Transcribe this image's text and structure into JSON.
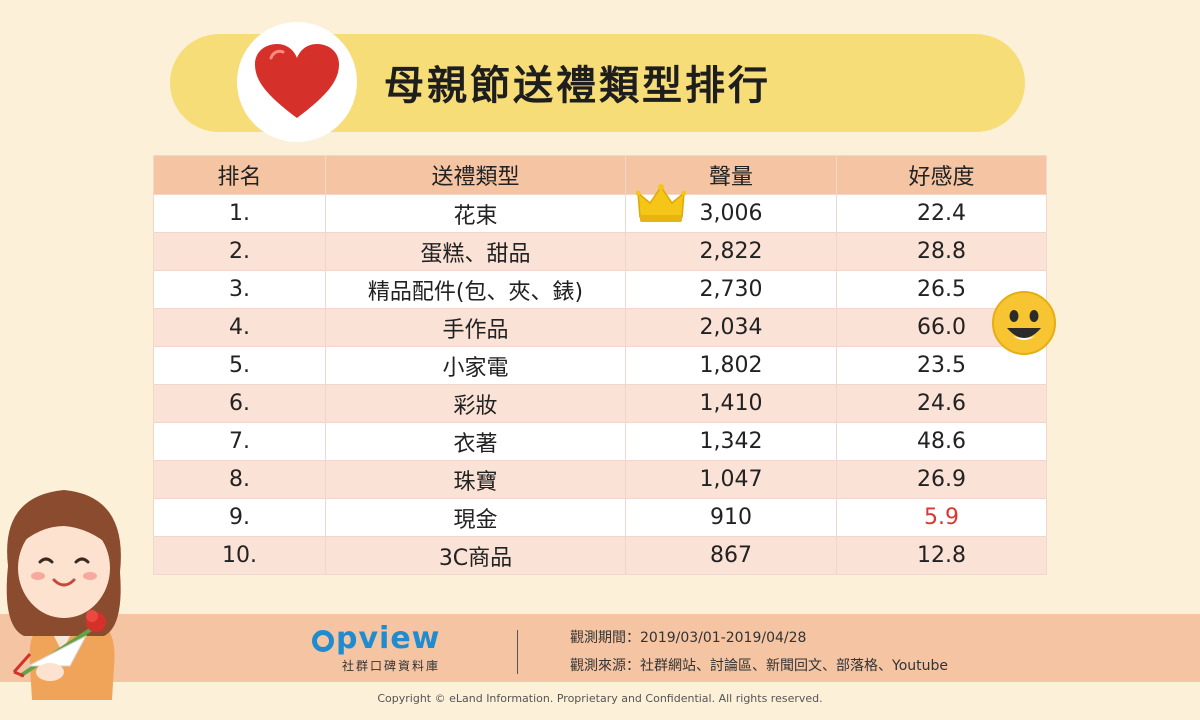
{
  "title": "母親節送禮類型排行",
  "table": {
    "headers": [
      "排名",
      "送禮類型",
      "聲量",
      "好感度"
    ],
    "rows": [
      {
        "rank": "1.",
        "type": "花束",
        "volume": "3,006",
        "favor": "22.4"
      },
      {
        "rank": "2.",
        "type": "蛋糕、甜品",
        "volume": "2,822",
        "favor": "28.8"
      },
      {
        "rank": "3.",
        "type": "精品配件(包、夾、錶)",
        "volume": "2,730",
        "favor": "26.5"
      },
      {
        "rank": "4.",
        "type": "手作品",
        "volume": "2,034",
        "favor": "66.0"
      },
      {
        "rank": "5.",
        "type": "小家電",
        "volume": "1,802",
        "favor": "23.5"
      },
      {
        "rank": "6.",
        "type": "彩妝",
        "volume": "1,410",
        "favor": "24.6"
      },
      {
        "rank": "7.",
        "type": "衣著",
        "volume": "1,342",
        "favor": "48.6"
      },
      {
        "rank": "8.",
        "type": "珠寶",
        "volume": "1,047",
        "favor": "26.9"
      },
      {
        "rank": "9.",
        "type": "現金",
        "volume": "910",
        "favor": "5.9"
      },
      {
        "rank": "10.",
        "type": "3C商品",
        "volume": "867",
        "favor": "12.8"
      }
    ]
  },
  "brand": {
    "name": "pview",
    "subtitle": "社群口碑資料庫"
  },
  "meta": {
    "period": "觀測期間：2019/03/01-2019/04/28",
    "sources": "觀測來源：社群網站、討論區、新聞回文、部落格、Youtube"
  },
  "copyright": "Copyright © eLand Information. Proprietary and Confidential. All rights reserved.",
  "colors": {
    "background": "#fcf0d8",
    "banner": "#f7dd78",
    "header": "#f4c4a3",
    "row_alt": "#fbe2d6",
    "highlight_low": "#d9372f",
    "brand_blue": "#1f8cd0"
  },
  "icons": [
    "heart-icon",
    "crown-icon",
    "smiley-icon",
    "mother-with-flower-illustration"
  ]
}
